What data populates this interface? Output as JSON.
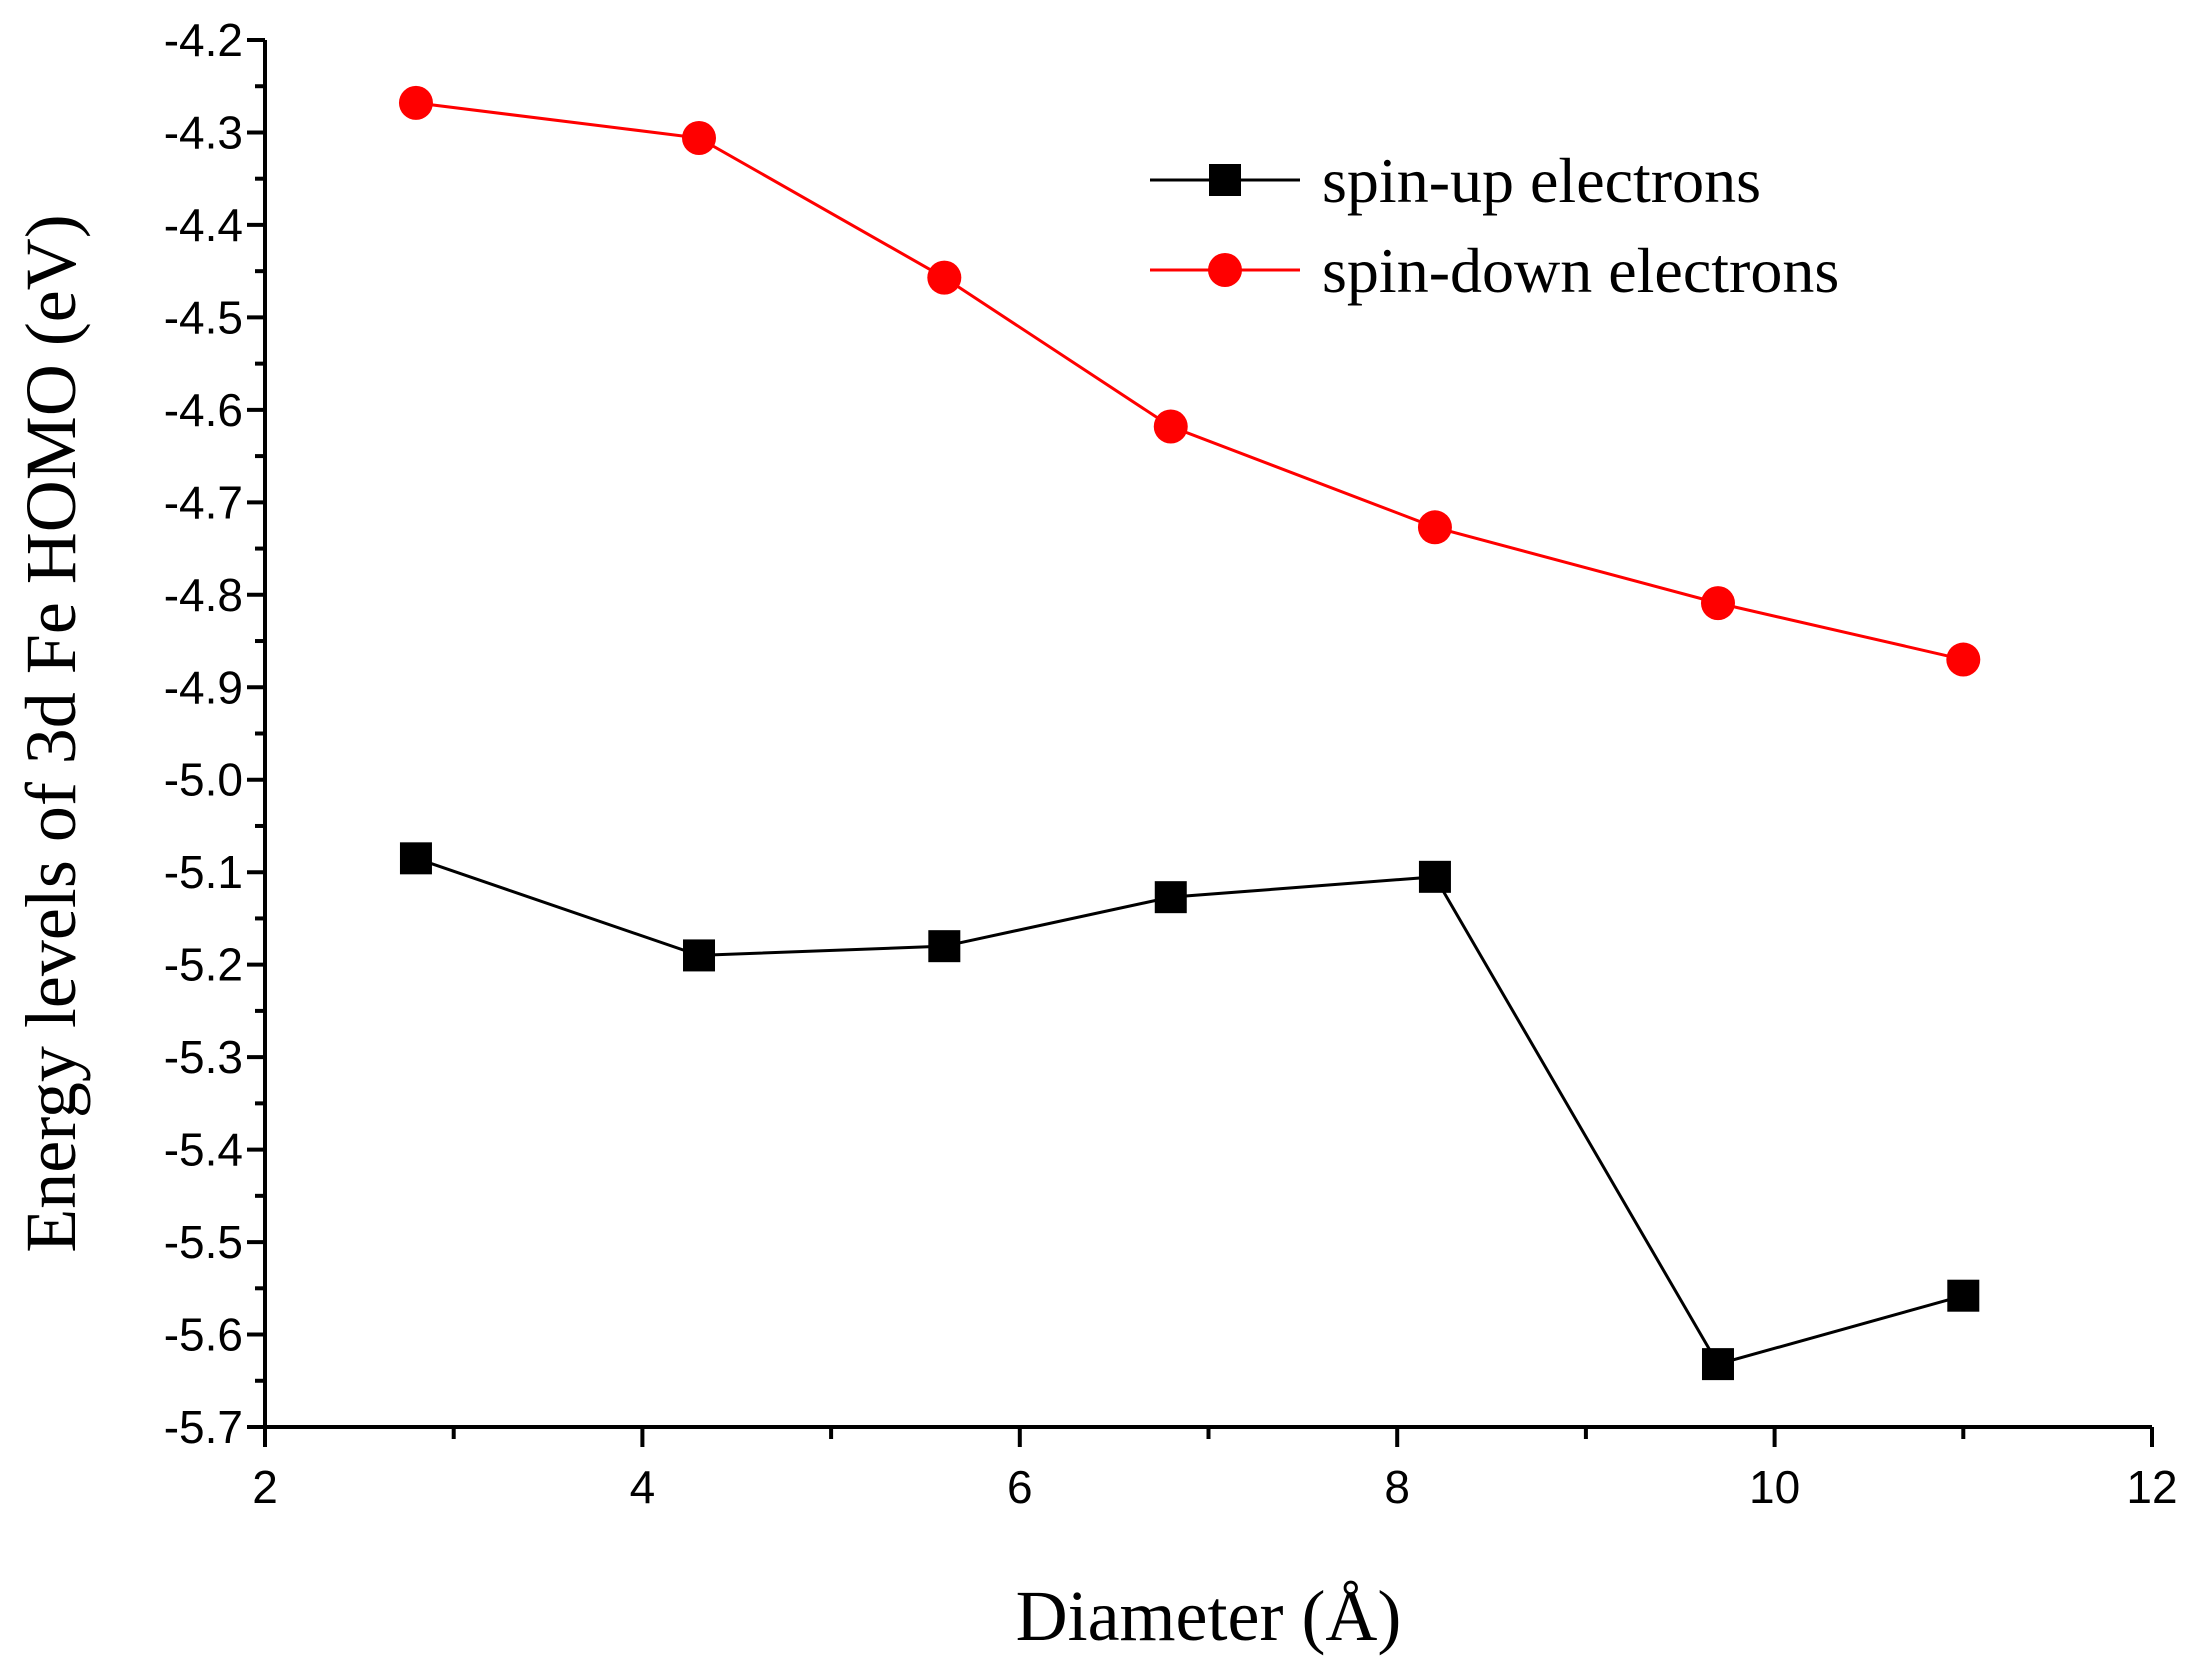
{
  "chart_data": {
    "type": "line",
    "title": "",
    "xlabel": "Diameter (Å)",
    "ylabel": "Energy levels of 3d Fe HOMO (eV)",
    "xlim": [
      2,
      12
    ],
    "ylim": [
      -5.7,
      -4.2
    ],
    "xticks": [
      2,
      4,
      6,
      8,
      10,
      12
    ],
    "xtick_labels": [
      "2",
      "4",
      "6",
      "8",
      "10",
      "12"
    ],
    "yticks": [
      -5.7,
      -5.6,
      -5.5,
      -5.4,
      -5.3,
      -5.2,
      -5.1,
      -5.0,
      -4.9,
      -4.8,
      -4.7,
      -4.6,
      -4.5,
      -4.4,
      -4.3,
      -4.2
    ],
    "ytick_labels": [
      "-5.7",
      "-5.6",
      "-5.5",
      "-5.4",
      "-5.3",
      "-5.2",
      "-5.1",
      "-5.0",
      "-4.9",
      "-4.8",
      "-4.7",
      "-4.6",
      "-4.5",
      "-4.4",
      "-4.3",
      "-4.2"
    ],
    "grid": false,
    "legend_position": "top-right",
    "series": [
      {
        "name": "spin-up electrons",
        "color": "#000000",
        "marker": "square",
        "x": [
          2.8,
          4.3,
          5.6,
          6.8,
          8.2,
          9.7,
          11.0
        ],
        "y": [
          -5.085,
          -5.19,
          -5.18,
          -5.127,
          -5.105,
          -5.632,
          -5.558
        ]
      },
      {
        "name": "spin-down electrons",
        "color": "#ff0000",
        "marker": "circle",
        "x": [
          2.8,
          4.3,
          5.6,
          6.8,
          8.2,
          9.7,
          11.0
        ],
        "y": [
          -4.268,
          -4.306,
          -4.457,
          -4.618,
          -4.727,
          -4.809,
          -4.87
        ]
      }
    ]
  }
}
